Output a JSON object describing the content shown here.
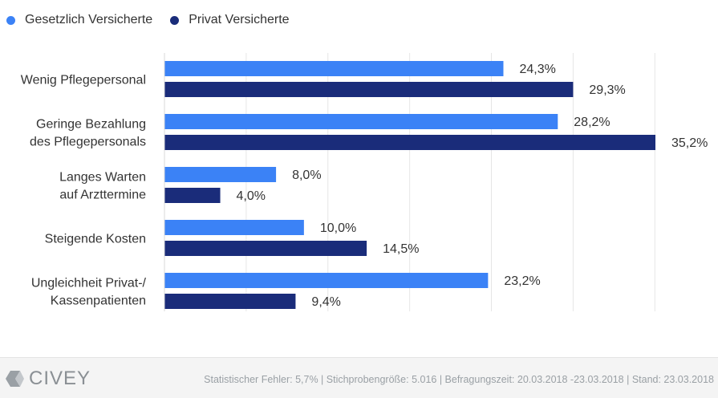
{
  "chart_data": {
    "type": "bar",
    "orientation": "horizontal",
    "categories": [
      [
        "Wenig Pflegepersonal"
      ],
      [
        "Geringe Bezahlung",
        "des Pflegepersonals"
      ],
      [
        "Langes Warten",
        "auf Arzttermine"
      ],
      [
        "Steigende Kosten"
      ],
      [
        "Ungleichheit Privat-/",
        "Kassenpatienten"
      ]
    ],
    "series": [
      {
        "name": "Gesetzlich Versicherte",
        "color": "#3b82f6",
        "values": [
          24.3,
          28.2,
          8.0,
          10.0,
          23.2
        ],
        "labels": [
          "24,3%",
          "28,2%",
          "8,0%",
          "10,0%",
          "23,2%"
        ]
      },
      {
        "name": "Privat Versicherte",
        "color": "#1a2c7a",
        "values": [
          29.3,
          35.2,
          4.0,
          14.5,
          9.4
        ],
        "labels": [
          "29,3%",
          "35,2%",
          "4,0%",
          "14,5%",
          "9,4%"
        ]
      }
    ],
    "xlim": [
      0,
      35.2
    ],
    "grid": true,
    "legend": "top-left",
    "title": "",
    "xlabel": "",
    "ylabel": ""
  },
  "footer": {
    "brand": "CIVEY",
    "note": "Statistischer Fehler: 5,7% | Stichprobengröße: 5.016 | Befragungszeit: 20.03.2018 -23.03.2018 | Stand: 23.03.2018"
  }
}
